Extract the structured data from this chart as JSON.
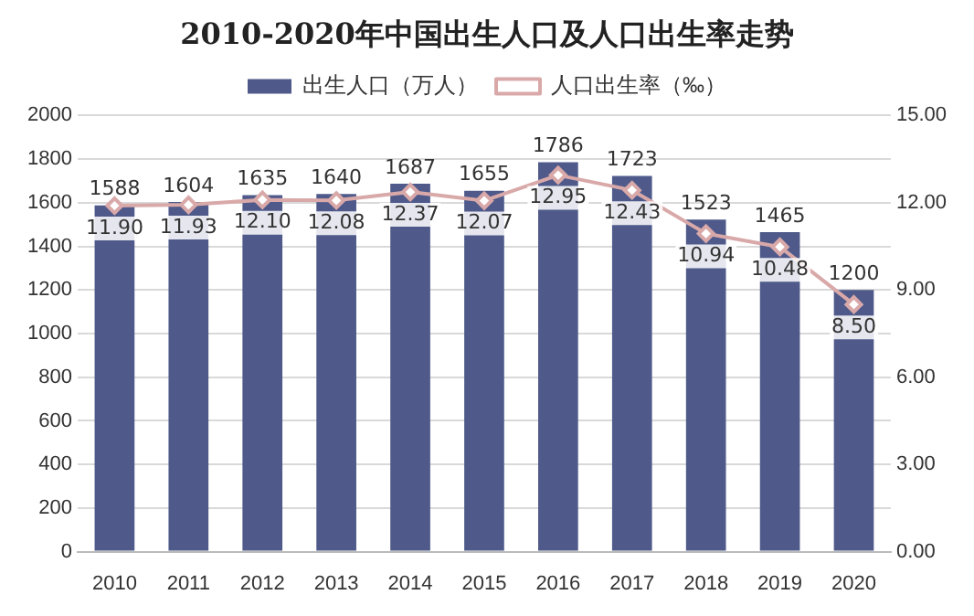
{
  "chart_data": {
    "type": "bar",
    "title": "2010-2020年中国出生人口及人口出生率走势",
    "categories": [
      "2010",
      "2011",
      "2012",
      "2013",
      "2014",
      "2015",
      "2016",
      "2017",
      "2018",
      "2019",
      "2020"
    ],
    "series": [
      {
        "name": "出生人口（万人）",
        "color": "#4f5a8a",
        "values": [
          1588,
          1604,
          1635,
          1640,
          1687,
          1655,
          1786,
          1723,
          1523,
          1465,
          1200
        ]
      },
      {
        "name": "人口出生率（‰）",
        "type": "line",
        "axis": "y2",
        "color": "#d9a9a9",
        "marker": "diamond",
        "values": [
          11.9,
          11.93,
          12.1,
          12.08,
          12.37,
          12.07,
          12.95,
          12.43,
          10.94,
          10.48,
          8.5
        ],
        "value_labels": [
          "11.90",
          "11.93",
          "12.10",
          "12.08",
          "12.37",
          "12.07",
          "12.95",
          "12.43",
          "10.94",
          "10.48",
          "8.50"
        ]
      }
    ],
    "ylim": [
      0,
      2000
    ],
    "yticks": [
      0,
      200,
      400,
      600,
      800,
      1000,
      1200,
      1400,
      1600,
      1800,
      2000
    ],
    "y2lim": [
      0,
      15
    ],
    "y2ticks": [
      {
        "value": 0,
        "label": "0.00"
      },
      {
        "value": 3,
        "label": "3.00"
      },
      {
        "value": 6,
        "label": "6.00"
      },
      {
        "value": 9,
        "label": "9.00"
      },
      {
        "value": 12,
        "label": "12.00"
      },
      {
        "value": 15,
        "label": "15.00"
      }
    ],
    "grid": "y",
    "legend": "top",
    "data_labels": true
  }
}
